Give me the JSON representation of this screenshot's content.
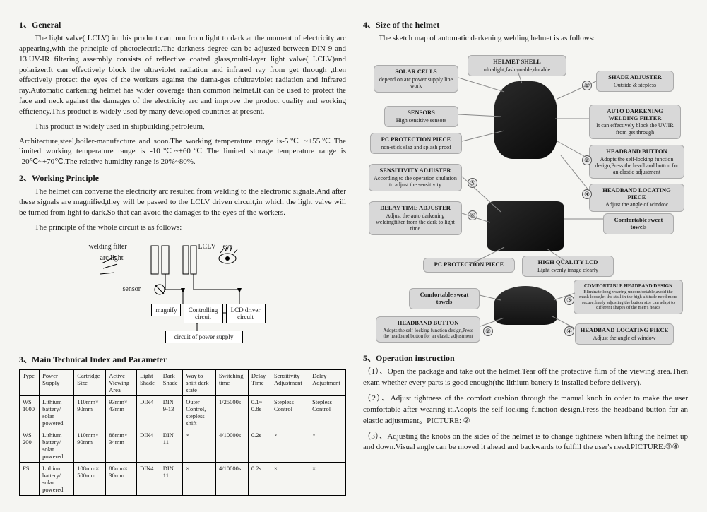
{
  "left": {
    "s1_title": "1、General",
    "s1_p1": "The light valve( LCLV) in this product can turn from light to dark at the moment of electricity arc appearing,with the principle of photoelectric.The darkness degree can be adjusted between DIN 9 and 13.UV-IR filtering assembly consists of reflective coated glass,multi-layer light valve( LCLV)and polarizer.It can effectively block the ultraviolet radiation and infrared ray from get through ,then effectively protect the eyes of the workers against the dama-ges ofultraviolet radiation and infrared ray.Automatic darkening helmet has wider coverage than common helmet.It can be used to protect the face and neck against the damages of the electricity arc and improve the product quality and working efficiency.This product is widely used by many developed countries at present.",
    "s1_p2": "This product is widely used in shipbuilding,petroleum,",
    "s1_p3": "Architecture,steel,boiler-manufacture and soon.The working temperature range is-5℃ ~+55℃.The limited working temperature range is -10℃~+60℃.The limited storage temperature range is -20℃~+70℃.The relative humidity range is 20%~80%.",
    "s2_title": "2、Working Principle",
    "s2_p1": "The helmet can converse the electricity arc resulted from welding to the electronic signals.And after these signals are magnified,they will be passed to the LCLV driven circuit,in which the light valve will be turned from light to dark.So that can avoid the damages to the eyes of the workers.",
    "s2_p2": "The principle of the whole circuit is as follows:",
    "circuit": {
      "welding_filter": "welding filter",
      "arc_light": "arc light",
      "sensor": "sensor",
      "lclv": "LCLV",
      "eye": "eye",
      "magnify": "magnify",
      "controlling": "Controlling circuit",
      "lcd_driver": "LCD driver circuit",
      "power": "circuit of power supply"
    },
    "s3_title": "3、Main Technical Index and Parameter",
    "table": {
      "headers": [
        "Type",
        "Power Supply",
        "Cartridge Size",
        "Active Viewing Area",
        "Light Shade",
        "Dark Shade",
        "Way to shift dark state",
        "Switching time",
        "Delay Time",
        "Sensitivity Adjustment",
        "Delay Adjustment"
      ],
      "rows": [
        [
          "WS 1000",
          "Lithium battery/ solar powered",
          "110mm× 90mm",
          "93mm× 43mm",
          "DIN4",
          "DIN 9-13",
          "Outer Control, stepless shift",
          "1/25000s",
          "0.1~ 0.8s",
          "Stepless Control",
          "Stepless Control"
        ],
        [
          "WS 200",
          "Lithium battery/ solar powered",
          "110mm× 90mm",
          "88mm× 34mm",
          "DIN4",
          "DIN 11",
          "×",
          "4/10000s",
          "0.2s",
          "×",
          "×"
        ],
        [
          "FS",
          "Lithium battery/ solar powered",
          "108mm× 500mm",
          "88mm× 30mm",
          "DIN4",
          "DIN 11",
          "×",
          "4/10000s",
          "0.2s",
          "×",
          "×"
        ]
      ]
    }
  },
  "right": {
    "s4_title": "4、Size of the helmet",
    "s4_p1": "The sketch map of automatic darkening welding helmet is as follows:",
    "callouts": {
      "solar": {
        "t": "SOLAR CELLS",
        "d": "depend on arc power supply line work"
      },
      "shell": {
        "t": "HELMET SHELL",
        "d": "ultralight,fashionable,durable"
      },
      "shade": {
        "t": "SHADE ADJUSTER",
        "d": "Outside & stepless"
      },
      "sensors": {
        "t": "SENSORS",
        "d": "High sensitive sensors"
      },
      "filter": {
        "t": "AUTO DARKENING WELDING FILTER",
        "d": "It can effectively block the UV/IR from get through"
      },
      "pc1": {
        "t": "PC PROTECTION PIECE",
        "d": "non-stick slag and splash proof"
      },
      "headband_btn": {
        "t": "HEADBAND BUTTON",
        "d": "Adopts the self-locking function design,Press the headband button for an elastic adjustment"
      },
      "sens_adj": {
        "t": "SENSITIVITY ADJUSTER",
        "d": "According to the operation situlation to adjust the sensitivity"
      },
      "locating": {
        "t": "HEADBAND LOCATING PIECE",
        "d": "Adjust the angle of window"
      },
      "delay": {
        "t": "DELAY TIME ADJUSTER",
        "d": "Adjust the auto darkening weldingfilter from the dark to light time"
      },
      "towels1": {
        "t": "Comfortable sweat towels",
        "d": ""
      },
      "pc2": {
        "t": "PC PROTECTION PIECE",
        "d": ""
      },
      "lcd": {
        "t": "HIGH QUALITY LCD",
        "d": "Light evenly image clearly"
      },
      "towels2": {
        "t": "Comfortable sweat towels",
        "d": ""
      },
      "comfort_design": {
        "t": "COMFORTABLE HEADBAND DESIGN",
        "d": "Eliminate long wearing uncomfortable,avoid the mask loose,let the stall in the high altitude need more secure,freely adjusting the button size can adapt to different shapes of the men's heads"
      },
      "headband_btn2": {
        "t": "HEADBAND BUTTON",
        "d": "Adopts the self-locking function design,Press the headband button for an elastic adjustment"
      },
      "locating2": {
        "t": "HEADBAND LOCATING PIECE",
        "d": "Adjust the angle of window"
      }
    },
    "s5_title": "5、Operation instruction",
    "op1": "（1）、Open the package and take out the helmet.Tear off the protective film of the viewing area.Then exam whether every parts is good enough(the lithium battery is installed before delivery).",
    "op2": "（2）、Adjust tightness of the comfort cushion through the manual knob in order to make the user comfortable after wearing it.Adopts the self-locking function design,Press the headband button for an elastic adjustment。PICTURE: ②",
    "op3": "（3）、Adjusting the knobs on the sides of the helmet is to change tightness when lifting the helmet up and down.Visual angle can be moved it ahead and backwards to fulfill the user's need.PICTURE:③④"
  }
}
